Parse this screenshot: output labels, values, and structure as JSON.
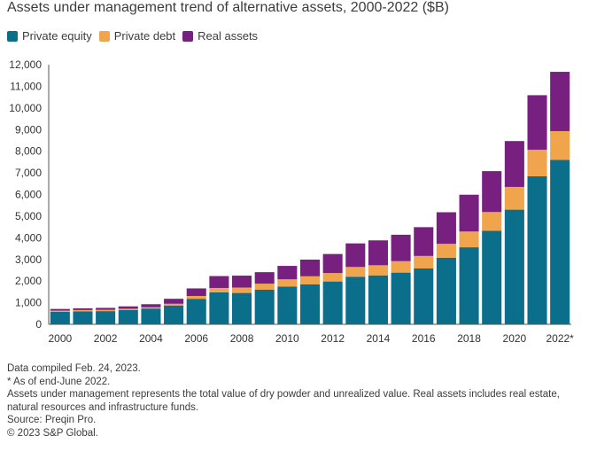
{
  "title": "Assets under management trend of alternative assets, 2000-2022 ($B)",
  "legend": [
    {
      "label": "Private equity",
      "color": "#0b6e8a"
    },
    {
      "label": "Private debt",
      "color": "#f0a44c"
    },
    {
      "label": "Real assets",
      "color": "#77207f"
    }
  ],
  "chart_data": {
    "type": "bar",
    "stacked": true,
    "title": "Assets under management trend of alternative assets, 2000-2022 ($B)",
    "xlabel": "",
    "ylabel": "",
    "ylim": [
      0,
      12000
    ],
    "grid": false,
    "legend_position": "top-left",
    "y_ticks": [
      0,
      1000,
      2000,
      3000,
      4000,
      5000,
      6000,
      7000,
      8000,
      9000,
      10000,
      11000,
      12000
    ],
    "y_tick_labels": [
      "0",
      "1,000",
      "2,000",
      "3,000",
      "4,000",
      "5,000",
      "6,000",
      "7,000",
      "8,000",
      "9,000",
      "10,000",
      "11,000",
      "12,000"
    ],
    "categories": [
      "2000",
      "2001",
      "2002",
      "2003",
      "2004",
      "2005",
      "2006",
      "2007",
      "2008",
      "2009",
      "2010",
      "2011",
      "2012",
      "2013",
      "2014",
      "2015",
      "2016",
      "2017",
      "2018",
      "2019",
      "2020",
      "2021",
      "2022"
    ],
    "x_tick_labels": [
      "2000",
      "",
      "2002",
      "",
      "2004",
      "",
      "2006",
      "",
      "2008",
      "",
      "2010",
      "",
      "2012",
      "",
      "2014",
      "",
      "2016",
      "",
      "2018",
      "",
      "2020",
      "",
      "2022*"
    ],
    "series": [
      {
        "name": "Private equity",
        "color": "#0b6e8a",
        "values": [
          580,
          600,
          610,
          660,
          730,
          870,
          1180,
          1480,
          1450,
          1600,
          1750,
          1850,
          1980,
          2200,
          2260,
          2390,
          2580,
          3080,
          3560,
          4320,
          5300,
          6840,
          7600
        ]
      },
      {
        "name": "Private debt",
        "color": "#f0a44c",
        "values": [
          50,
          60,
          60,
          60,
          60,
          80,
          130,
          200,
          250,
          280,
          330,
          370,
          390,
          450,
          470,
          530,
          580,
          640,
          730,
          870,
          1050,
          1230,
          1330
        ]
      },
      {
        "name": "Real assets",
        "color": "#77207f",
        "values": [
          80,
          80,
          90,
          110,
          140,
          230,
          350,
          550,
          550,
          530,
          620,
          770,
          880,
          1090,
          1150,
          1220,
          1330,
          1460,
          1700,
          1890,
          2120,
          2520,
          2740
        ]
      }
    ]
  },
  "notes": {
    "compiled": "Data compiled Feb. 24, 2023.",
    "asterisk": "* As of end-June 2022.",
    "definition_1": "Assets under management represents the total value of dry powder and unrealized value. Real assets includes real estate,",
    "definition_2": "natural resources and infrastructure funds.",
    "source": "Source: Preqin Pro.",
    "copyright": "© 2023 S&P Global."
  }
}
